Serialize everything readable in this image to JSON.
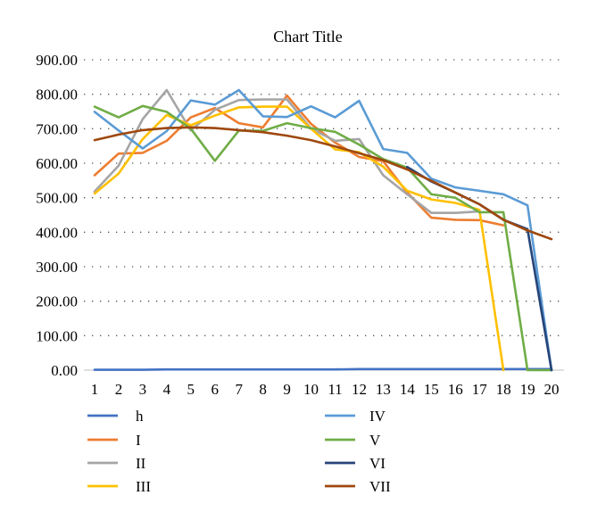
{
  "chart_data": {
    "type": "line",
    "title": "Chart Title",
    "xlabel": "",
    "ylabel": "",
    "categories": [
      "1",
      "2",
      "3",
      "4",
      "5",
      "6",
      "7",
      "8",
      "9",
      "10",
      "11",
      "12",
      "13",
      "14",
      "15",
      "16",
      "17",
      "18",
      "19",
      "20"
    ],
    "y_ticks": [
      "0.00",
      "100.00",
      "200.00",
      "300.00",
      "400.00",
      "500.00",
      "600.00",
      "700.00",
      "800.00",
      "900.00"
    ],
    "ylim": [
      0,
      900
    ],
    "grid": true,
    "legend_position": "bottom",
    "series": [
      {
        "name": "h",
        "color": "#4472c4",
        "values": [
          1,
          1,
          1,
          2,
          2,
          2,
          2,
          2,
          2,
          2,
          2,
          3,
          3,
          3,
          3,
          3,
          3,
          3,
          3,
          3
        ]
      },
      {
        "name": "I",
        "color": "#ed7d31",
        "values": [
          565,
          628,
          630,
          665,
          733,
          760,
          716,
          704,
          796,
          714,
          660,
          618,
          606,
          515,
          442,
          436,
          435,
          420,
          null,
          null
        ]
      },
      {
        "name": "II",
        "color": "#a5a5a5",
        "values": [
          518,
          593,
          728,
          812,
          695,
          755,
          783,
          785,
          785,
          700,
          665,
          670,
          565,
          510,
          456,
          456,
          460,
          null,
          null,
          null
        ]
      },
      {
        "name": "III",
        "color": "#ffc000",
        "values": [
          512,
          570,
          670,
          740,
          710,
          738,
          762,
          764,
          764,
          700,
          640,
          632,
          590,
          520,
          495,
          485,
          465,
          0,
          null,
          null
        ]
      },
      {
        "name": "IV",
        "color": "#5b9bd5",
        "values": [
          749,
          695,
          643,
          693,
          782,
          770,
          812,
          736,
          734,
          765,
          733,
          781,
          641,
          630,
          555,
          530,
          520,
          510,
          478,
          0
        ]
      },
      {
        "name": "V",
        "color": "#70ad47",
        "values": [
          764,
          733,
          766,
          749,
          700,
          607,
          695,
          694,
          716,
          702,
          691,
          654,
          612,
          587,
          510,
          500,
          458,
          458,
          0,
          0
        ]
      },
      {
        "name": "VI",
        "color": "#264478",
        "values": [
          null,
          null,
          null,
          null,
          null,
          null,
          null,
          null,
          null,
          null,
          null,
          null,
          null,
          589,
          547,
          515,
          481,
          436,
          409,
          0
        ]
      },
      {
        "name": "VII",
        "color": "#9e480e",
        "values": [
          667,
          683,
          696,
          702,
          704,
          702,
          696,
          690,
          680,
          667,
          649,
          629,
          609,
          582,
          549,
          515,
          481,
          436,
          405,
          380
        ]
      }
    ]
  }
}
